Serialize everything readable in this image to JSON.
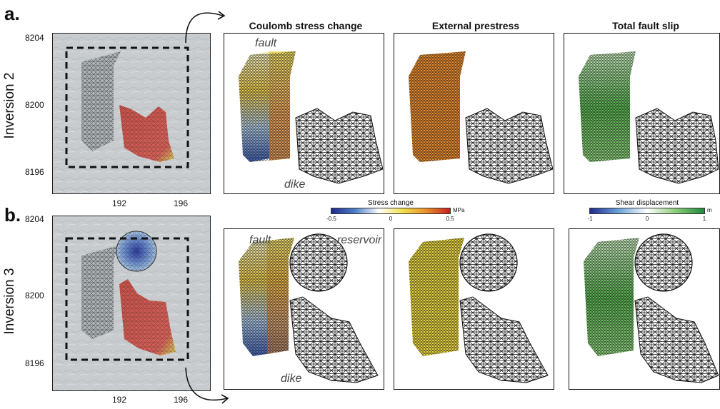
{
  "panels": {
    "a": {
      "letter": "a.",
      "row_title": "Inversion 2"
    },
    "b": {
      "letter": "b.",
      "row_title": "Inversion 3"
    }
  },
  "columns": {
    "coulomb": "Coulomb stress change",
    "prestress": "External prestress",
    "slip": "Total fault slip"
  },
  "map_axes": {
    "y_ticks": [
      "8204",
      "8200",
      "8196"
    ],
    "x_ticks": [
      "192",
      "196"
    ]
  },
  "annotations": {
    "fault": "fault",
    "dike": "dike",
    "reservoir": "reservoir"
  },
  "colorbars": {
    "stress": {
      "title": "Stress change",
      "unit": "MPa",
      "ticks": [
        "-0.5",
        "0",
        "0.5"
      ],
      "colors": [
        "#1f2b8f",
        "#4d7fc7",
        "#ffffff",
        "#f4e04d",
        "#e8902c",
        "#c81e1e"
      ]
    },
    "shear": {
      "title": "Shear displacement",
      "unit": "m",
      "ticks": [
        "-1",
        "0",
        "1"
      ],
      "colors": [
        "#1f2b8f",
        "#6aa3d8",
        "#ffffff",
        "#8ccc7a",
        "#1f8a3a"
      ]
    }
  },
  "colors": {
    "coulomb_fault": "#e8c84a",
    "prestress_a": "#e58a2e",
    "prestress_b": "#e6d440",
    "slip_fault": "#56b04e",
    "dike_map": "#c9443a",
    "reservoir_map": "#5f86c6"
  }
}
